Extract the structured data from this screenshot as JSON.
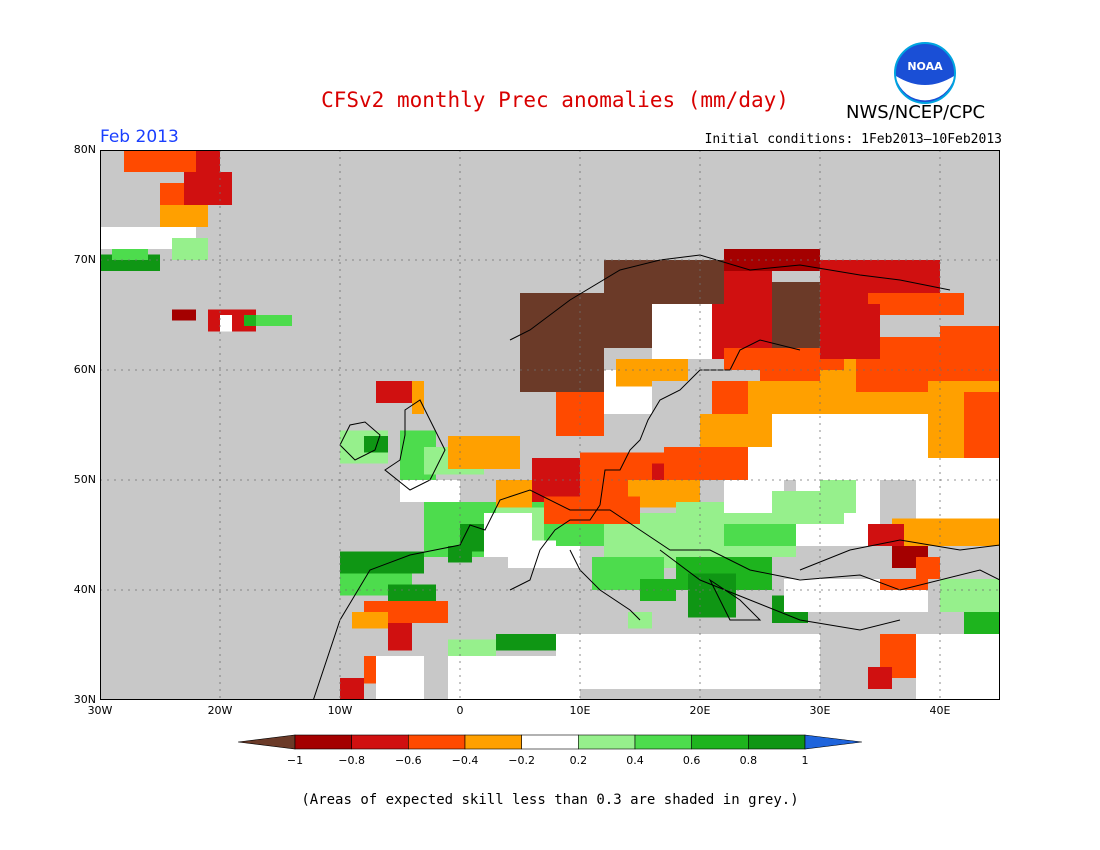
{
  "title": "CFSv2 monthly Prec anomalies (mm/day)",
  "agency": "NWS/NCEP/CPC",
  "logo_text": "NOAA",
  "period": "Feb 2013",
  "initial_conditions": "Initial conditions: 1Feb2013–10Feb2013",
  "map": {
    "lon_range": [
      -30,
      45
    ],
    "lat_range": [
      30,
      80
    ],
    "lat_labels": [
      "30N",
      "40N",
      "50N",
      "60N",
      "70N",
      "80N"
    ],
    "lon_labels": [
      "30W",
      "20W",
      "10W",
      "0",
      "10E",
      "20E",
      "30E",
      "40E"
    ],
    "background_color": "#c8c8c8",
    "grid": "dotted",
    "cells": [
      {
        "lon": [
          -28,
          -22
        ],
        "lat": [
          78,
          80
        ],
        "level": "m6"
      },
      {
        "lon": [
          -22,
          -20
        ],
        "lat": [
          78,
          80
        ],
        "level": "m8"
      },
      {
        "lon": [
          -23,
          -19
        ],
        "lat": [
          75,
          78
        ],
        "level": "m8"
      },
      {
        "lon": [
          -25,
          -23
        ],
        "lat": [
          74,
          77
        ],
        "level": "m6"
      },
      {
        "lon": [
          -25,
          -21
        ],
        "lat": [
          73,
          75
        ],
        "level": "m4"
      },
      {
        "lon": [
          -30,
          -22
        ],
        "lat": [
          71,
          73
        ],
        "level": "z"
      },
      {
        "lon": [
          -24,
          -21
        ],
        "lat": [
          70,
          72
        ],
        "level": "p4"
      },
      {
        "lon": [
          -30,
          -25
        ],
        "lat": [
          69,
          70.5
        ],
        "level": "p10"
      },
      {
        "lon": [
          -29,
          -26
        ],
        "lat": [
          70,
          71
        ],
        "level": "p6"
      },
      {
        "lon": [
          -24,
          -22
        ],
        "lat": [
          64.5,
          65.5
        ],
        "level": "m10"
      },
      {
        "lon": [
          -21,
          -17
        ],
        "lat": [
          63.5,
          65.5
        ],
        "level": "m8"
      },
      {
        "lon": [
          -18,
          -16
        ],
        "lat": [
          64,
          65
        ],
        "level": "p8"
      },
      {
        "lon": [
          -17,
          -14
        ],
        "lat": [
          64,
          65
        ],
        "level": "p6"
      },
      {
        "lon": [
          -20,
          -19
        ],
        "lat": [
          63.5,
          65
        ],
        "level": "z"
      },
      {
        "lon": [
          -10,
          -6
        ],
        "lat": [
          51.5,
          54.5
        ],
        "level": "p4"
      },
      {
        "lon": [
          -8,
          -6
        ],
        "lat": [
          52.5,
          54
        ],
        "level": "p10"
      },
      {
        "lon": [
          -5,
          -2
        ],
        "lat": [
          50,
          54.5
        ],
        "level": "p6"
      },
      {
        "lon": [
          -3,
          2
        ],
        "lat": [
          50.5,
          53
        ],
        "level": "p4"
      },
      {
        "lon": [
          -7,
          -4
        ],
        "lat": [
          57,
          59
        ],
        "level": "m8"
      },
      {
        "lon": [
          -4,
          -3
        ],
        "lat": [
          56,
          59
        ],
        "level": "m4"
      },
      {
        "lon": [
          -5,
          0
        ],
        "lat": [
          48,
          50
        ],
        "level": "z"
      },
      {
        "lon": [
          -3,
          8
        ],
        "lat": [
          43,
          48
        ],
        "level": "p6"
      },
      {
        "lon": [
          0,
          3
        ],
        "lat": [
          43.5,
          46
        ],
        "level": "p10"
      },
      {
        "lon": [
          -1,
          1
        ],
        "lat": [
          42.5,
          44
        ],
        "level": "p10"
      },
      {
        "lon": [
          3,
          7
        ],
        "lat": [
          44,
          47.5
        ],
        "level": "p4"
      },
      {
        "lon": [
          4,
          10
        ],
        "lat": [
          42,
          44.5
        ],
        "level": "z"
      },
      {
        "lon": [
          8,
          14
        ],
        "lat": [
          44,
          48.5
        ],
        "level": "p6"
      },
      {
        "lon": [
          12,
          19
        ],
        "lat": [
          42,
          47
        ],
        "level": "p4"
      },
      {
        "lon": [
          11,
          17
        ],
        "lat": [
          40,
          43
        ],
        "level": "p6"
      },
      {
        "lon": [
          15,
          18
        ],
        "lat": [
          39,
          41
        ],
        "level": "p8"
      },
      {
        "lon": [
          14,
          16
        ],
        "lat": [
          36.5,
          38
        ],
        "level": "p4"
      },
      {
        "lon": [
          18,
          26
        ],
        "lat": [
          40,
          43.5
        ],
        "level": "p8"
      },
      {
        "lon": [
          19,
          23
        ],
        "lat": [
          37.5,
          41.5
        ],
        "level": "p10"
      },
      {
        "lon": [
          26,
          29
        ],
        "lat": [
          37,
          39.5
        ],
        "level": "p10"
      },
      {
        "lon": [
          -10,
          -3
        ],
        "lat": [
          41.5,
          43.5
        ],
        "level": "p10"
      },
      {
        "lon": [
          -10,
          -4
        ],
        "lat": [
          39.5,
          41.5
        ],
        "level": "p6"
      },
      {
        "lon": [
          -6,
          -2
        ],
        "lat": [
          39,
          40.5
        ],
        "level": "p10"
      },
      {
        "lon": [
          -8,
          -1
        ],
        "lat": [
          37,
          39
        ],
        "level": "m6"
      },
      {
        "lon": [
          -9,
          -6
        ],
        "lat": [
          36.5,
          38
        ],
        "level": "m4"
      },
      {
        "lon": [
          -6,
          -4
        ],
        "lat": [
          34.5,
          37
        ],
        "level": "m8"
      },
      {
        "lon": [
          3,
          8
        ],
        "lat": [
          34.5,
          36
        ],
        "level": "p10"
      },
      {
        "lon": [
          -1,
          3
        ],
        "lat": [
          34,
          35.5
        ],
        "level": "p4"
      },
      {
        "lon": [
          -8,
          -5
        ],
        "lat": [
          31.5,
          34
        ],
        "level": "m6"
      },
      {
        "lon": [
          -10,
          -8
        ],
        "lat": [
          30,
          32
        ],
        "level": "m8"
      },
      {
        "lon": [
          -7,
          -3
        ],
        "lat": [
          30,
          34
        ],
        "level": "z"
      },
      {
        "lon": [
          -1,
          10
        ],
        "lat": [
          30,
          34
        ],
        "level": "z"
      },
      {
        "lon": [
          2,
          6
        ],
        "lat": [
          43,
          47
        ],
        "level": "z"
      },
      {
        "lon": [
          6,
          10
        ],
        "lat": [
          48,
          52
        ],
        "level": "m8"
      },
      {
        "lon": [
          10,
          17
        ],
        "lat": [
          48,
          52.5
        ],
        "level": "m6"
      },
      {
        "lon": [
          16,
          19
        ],
        "lat": [
          49,
          51.5
        ],
        "level": "m8"
      },
      {
        "lon": [
          17,
          20
        ],
        "lat": [
          50,
          53
        ],
        "level": "m6"
      },
      {
        "lon": [
          20,
          24
        ],
        "lat": [
          50,
          53.5
        ],
        "level": "m6"
      },
      {
        "lon": [
          14,
          20
        ],
        "lat": [
          47.5,
          50
        ],
        "level": "m4"
      },
      {
        "lon": [
          3,
          6
        ],
        "lat": [
          47.5,
          50
        ],
        "level": "m4"
      },
      {
        "lon": [
          7,
          15
        ],
        "lat": [
          46,
          48.5
        ],
        "level": "m6"
      },
      {
        "lon": [
          18,
          28
        ],
        "lat": [
          43,
          48
        ],
        "level": "p4"
      },
      {
        "lon": [
          22,
          30
        ],
        "lat": [
          44,
          46
        ],
        "level": "p6"
      },
      {
        "lon": [
          28,
          35
        ],
        "lat": [
          44,
          50
        ],
        "level": "z"
      },
      {
        "lon": [
          30,
          33
        ],
        "lat": [
          47,
          51
        ],
        "level": "p4"
      },
      {
        "lon": [
          22,
          27
        ],
        "lat": [
          47,
          50
        ],
        "level": "z"
      },
      {
        "lon": [
          24,
          39
        ],
        "lat": [
          50,
          56
        ],
        "level": "z"
      },
      {
        "lon": [
          26,
          32
        ],
        "lat": [
          46,
          49
        ],
        "level": "p4"
      },
      {
        "lon": [
          24,
          30
        ],
        "lat": [
          55.5,
          57
        ],
        "level": "z"
      },
      {
        "lon": [
          24,
          34
        ],
        "lat": [
          56,
          59
        ],
        "level": "m4"
      },
      {
        "lon": [
          20,
          26
        ],
        "lat": [
          53,
          56
        ],
        "level": "m4"
      },
      {
        "lon": [
          21,
          24
        ],
        "lat": [
          56,
          59
        ],
        "level": "m6"
      },
      {
        "lon": [
          25,
          32
        ],
        "lat": [
          59,
          61
        ],
        "level": "m6"
      },
      {
        "lon": [
          30,
          45
        ],
        "lat": [
          56,
          61
        ],
        "level": "m4"
      },
      {
        "lon": [
          33,
          45
        ],
        "lat": [
          58,
          63
        ],
        "level": "m6"
      },
      {
        "lon": [
          39,
          45
        ],
        "lat": [
          52,
          59
        ],
        "level": "m4"
      },
      {
        "lon": [
          42,
          45
        ],
        "lat": [
          52,
          58
        ],
        "level": "m6"
      },
      {
        "lon": [
          38,
          45
        ],
        "lat": [
          46.5,
          52
        ],
        "level": "z"
      },
      {
        "lon": [
          36,
          45
        ],
        "lat": [
          44,
          46.5
        ],
        "level": "m4"
      },
      {
        "lon": [
          34,
          37
        ],
        "lat": [
          44,
          46
        ],
        "level": "m8"
      },
      {
        "lon": [
          36,
          39
        ],
        "lat": [
          42,
          44
        ],
        "level": "m10"
      },
      {
        "lon": [
          38,
          40
        ],
        "lat": [
          41,
          43
        ],
        "level": "m6"
      },
      {
        "lon": [
          27,
          39
        ],
        "lat": [
          38,
          41
        ],
        "level": "z"
      },
      {
        "lon": [
          35,
          39
        ],
        "lat": [
          40,
          41
        ],
        "level": "m6"
      },
      {
        "lon": [
          40,
          45
        ],
        "lat": [
          38,
          41
        ],
        "level": "p4"
      },
      {
        "lon": [
          42,
          45
        ],
        "lat": [
          36,
          38
        ],
        "level": "p8"
      },
      {
        "lon": [
          35,
          38
        ],
        "lat": [
          32,
          36
        ],
        "level": "m6"
      },
      {
        "lon": [
          34,
          36
        ],
        "lat": [
          31,
          33
        ],
        "level": "m8"
      },
      {
        "lon": [
          38,
          45
        ],
        "lat": [
          30,
          36
        ],
        "level": "z"
      },
      {
        "lon": [
          8,
          30
        ],
        "lat": [
          31,
          36
        ],
        "level": "z"
      },
      {
        "lon": [
          -1,
          5
        ],
        "lat": [
          51,
          54
        ],
        "level": "m4"
      },
      {
        "lon": [
          8,
          12
        ],
        "lat": [
          54,
          58
        ],
        "level": "m6"
      },
      {
        "lon": [
          12,
          16
        ],
        "lat": [
          56,
          60
        ],
        "level": "z"
      },
      {
        "lon": [
          14,
          19
        ],
        "lat": [
          59,
          61
        ],
        "level": "m4"
      },
      {
        "lon": [
          5,
          12
        ],
        "lat": [
          58,
          67
        ],
        "level": "b"
      },
      {
        "lon": [
          12,
          17
        ],
        "lat": [
          62,
          70
        ],
        "level": "b"
      },
      {
        "lon": [
          17,
          22
        ],
        "lat": [
          66,
          70
        ],
        "level": "b"
      },
      {
        "lon": [
          22,
          30
        ],
        "lat": [
          69,
          71
        ],
        "level": "m10"
      },
      {
        "lon": [
          22,
          26
        ],
        "lat": [
          66,
          69
        ],
        "level": "m8"
      },
      {
        "lon": [
          26,
          30
        ],
        "lat": [
          62,
          68
        ],
        "level": "b"
      },
      {
        "lon": [
          30,
          40
        ],
        "lat": [
          66,
          70
        ],
        "level": "m8"
      },
      {
        "lon": [
          34,
          42
        ],
        "lat": [
          65,
          67
        ],
        "level": "m6"
      },
      {
        "lon": [
          21,
          26
        ],
        "lat": [
          61,
          66
        ],
        "level": "m8"
      },
      {
        "lon": [
          22,
          32
        ],
        "lat": [
          60,
          62
        ],
        "level": "m6"
      },
      {
        "lon": [
          16,
          21
        ],
        "lat": [
          61,
          66
        ],
        "level": "z"
      },
      {
        "lon": [
          13,
          16
        ],
        "lat": [
          58.5,
          61
        ],
        "level": "m4"
      },
      {
        "lon": [
          40,
          45
        ],
        "lat": [
          62,
          64
        ],
        "level": "m6"
      },
      {
        "lon": [
          30,
          35
        ],
        "lat": [
          61,
          66
        ],
        "level": "m8"
      }
    ],
    "places": []
  },
  "legend": {
    "colors": [
      "#6b3a28",
      "#a40000",
      "#d01010",
      "#ff4a00",
      "#ffa000",
      "#ffffff",
      "#96f08c",
      "#4ddc4d",
      "#1eb41e",
      "#0f9614",
      "#1e64dc"
    ],
    "keys": [
      "b",
      "m10",
      "m8",
      "m6",
      "m4",
      "z",
      "p4",
      "p6",
      "p8",
      "p10"
    ],
    "ticks": [
      "−1",
      "−0.8",
      "−0.6",
      "−0.4",
      "−0.2",
      "0.2",
      "0.4",
      "0.6",
      "0.8",
      "1"
    ]
  },
  "footnote": "(Areas of expected skill less than 0.3 are shaded in grey.)"
}
